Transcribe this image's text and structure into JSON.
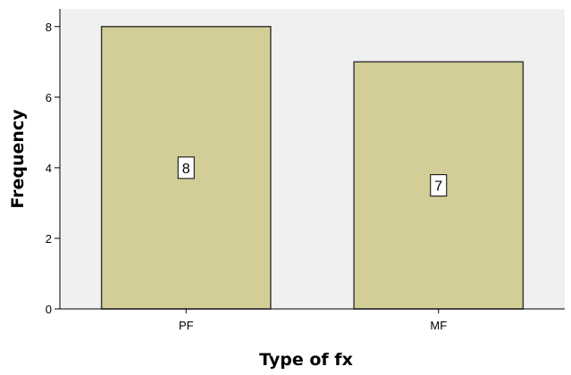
{
  "chart_data": {
    "type": "bar",
    "categories": [
      "PF",
      "MF"
    ],
    "values": [
      8,
      7
    ],
    "data_labels": [
      "8",
      "7"
    ],
    "xlabel": "Type of fx",
    "ylabel": "Frequency",
    "ylim": [
      0,
      8.5
    ],
    "yticks": [
      "0",
      "2",
      "4",
      "6",
      "8"
    ],
    "grid": false,
    "legend": "none",
    "colors": {
      "plot_background": "#f0f0f0",
      "bar_fill": "#d3ce97",
      "bar_stroke": "#3c3c3c",
      "axis": "#000000",
      "page_background": "#ffffff"
    }
  }
}
